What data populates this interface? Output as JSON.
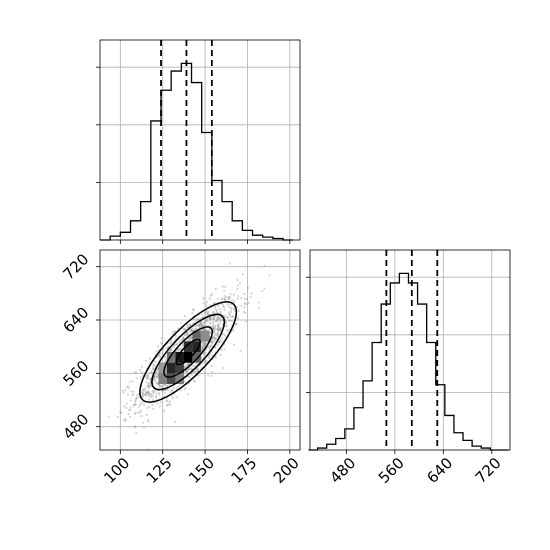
{
  "chart_data": [
    {
      "type": "histogram",
      "panel": "top-left",
      "xlim": [
        88,
        206
      ],
      "ylim": [
        0,
        1
      ],
      "grid": true,
      "bins_x": [
        91,
        97,
        103,
        109,
        115,
        121,
        127,
        133,
        139,
        145,
        151,
        157,
        163,
        169,
        175,
        181,
        187,
        193,
        199
      ],
      "values": [
        0.0,
        0.02,
        0.04,
        0.1,
        0.2,
        0.62,
        0.78,
        0.88,
        0.92,
        0.82,
        0.56,
        0.31,
        0.2,
        0.1,
        0.05,
        0.025,
        0.015,
        0.008,
        0.0
      ],
      "quantile_lines": [
        124,
        139,
        154
      ]
    },
    {
      "type": "scatter",
      "panel": "bottom-left",
      "xlim": [
        88,
        206
      ],
      "ylim": [
        445,
        745
      ],
      "grid": true,
      "points": {
        "mean": [
          140,
          592
        ],
        "std": [
          15,
          40
        ],
        "correlation": 0.82
      },
      "density_cells": [
        {
          "x": 125,
          "y": 552,
          "level": 0.5
        },
        {
          "x": 130,
          "y": 552,
          "level": 0.7
        },
        {
          "x": 130,
          "y": 568,
          "level": 0.85
        },
        {
          "x": 135,
          "y": 568,
          "level": 0.75
        },
        {
          "x": 135,
          "y": 584,
          "level": 0.9
        },
        {
          "x": 140,
          "y": 584,
          "level": 1.0
        },
        {
          "x": 140,
          "y": 600,
          "level": 0.8
        },
        {
          "x": 145,
          "y": 600,
          "level": 0.85
        },
        {
          "x": 145,
          "y": 616,
          "level": 0.6
        },
        {
          "x": 150,
          "y": 616,
          "level": 0.45
        },
        {
          "x": 130,
          "y": 584,
          "level": 0.55
        },
        {
          "x": 145,
          "y": 584,
          "level": 0.6
        },
        {
          "x": 135,
          "y": 552,
          "level": 0.5
        },
        {
          "x": 125,
          "y": 568,
          "level": 0.4
        }
      ],
      "contour_levels": [
        0.5,
        1.0,
        1.5,
        2.0
      ],
      "x_tick_labels": [
        "100",
        "125",
        "150",
        "175",
        "200"
      ],
      "y_tick_labels": [
        "480",
        "560",
        "640",
        "720"
      ]
    },
    {
      "type": "histogram",
      "panel": "bottom-right",
      "xlim": [
        420,
        750
      ],
      "ylim": [
        0,
        1
      ],
      "grid": true,
      "bins_x": [
        425,
        440,
        455,
        470,
        485,
        500,
        515,
        530,
        545,
        560,
        575,
        590,
        605,
        620,
        635,
        650,
        665,
        680,
        695,
        710,
        725,
        740
      ],
      "values": [
        0.0,
        0.01,
        0.03,
        0.06,
        0.11,
        0.22,
        0.36,
        0.56,
        0.76,
        0.87,
        0.92,
        0.87,
        0.76,
        0.56,
        0.34,
        0.18,
        0.09,
        0.05,
        0.02,
        0.01,
        0.0,
        0.0
      ],
      "quantile_lines": [
        546,
        588,
        630
      ],
      "x_tick_labels": [
        "480",
        "560",
        "640",
        "720"
      ]
    }
  ]
}
